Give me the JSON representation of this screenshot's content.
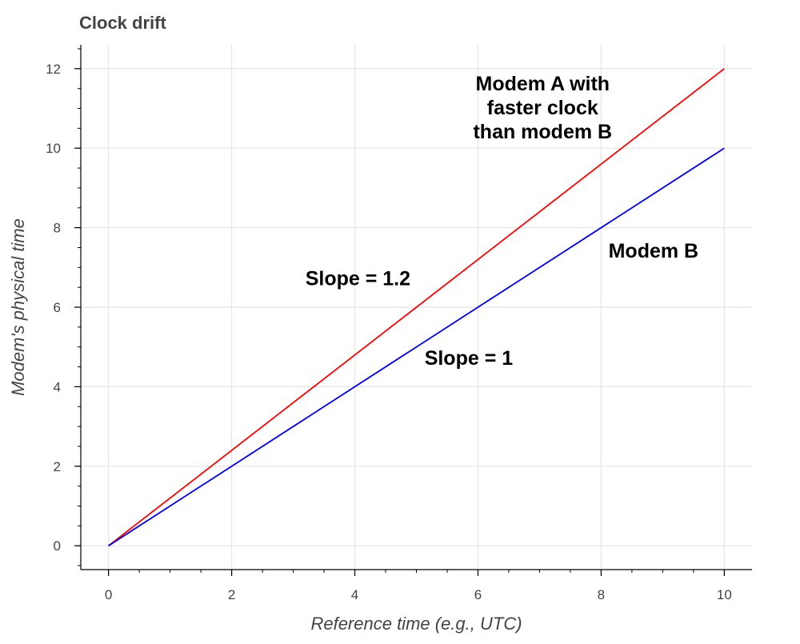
{
  "chart_data": {
    "type": "line",
    "title": "Clock drift",
    "xlabel": "Reference time (e.g., UTC)",
    "ylabel": "Modem's physical time",
    "xlim": [
      -0.45,
      10.45
    ],
    "ylim": [
      -0.6,
      12.6
    ],
    "x_ticks": [
      0,
      2,
      4,
      6,
      8,
      10
    ],
    "y_ticks": [
      0,
      2,
      4,
      6,
      8,
      10,
      12
    ],
    "grid": true,
    "series": [
      {
        "color": "#ff0000",
        "x": [
          0,
          10
        ],
        "y": [
          0,
          12
        ]
      },
      {
        "color": "#0000ff",
        "x": [
          0,
          10
        ],
        "y": [
          0,
          10
        ]
      }
    ],
    "annotations": [
      {
        "lines": [
          "Modem A with",
          "faster clock",
          "than modem B"
        ],
        "x": 7.05,
        "y": 11.45
      },
      {
        "lines": [
          "Modem B"
        ],
        "x": 8.85,
        "y": 7.25
      },
      {
        "lines": [
          "Slope = 1.2"
        ],
        "x": 4.05,
        "y": 6.55
      },
      {
        "lines": [
          "Slope = 1"
        ],
        "x": 5.85,
        "y": 4.55
      }
    ]
  }
}
